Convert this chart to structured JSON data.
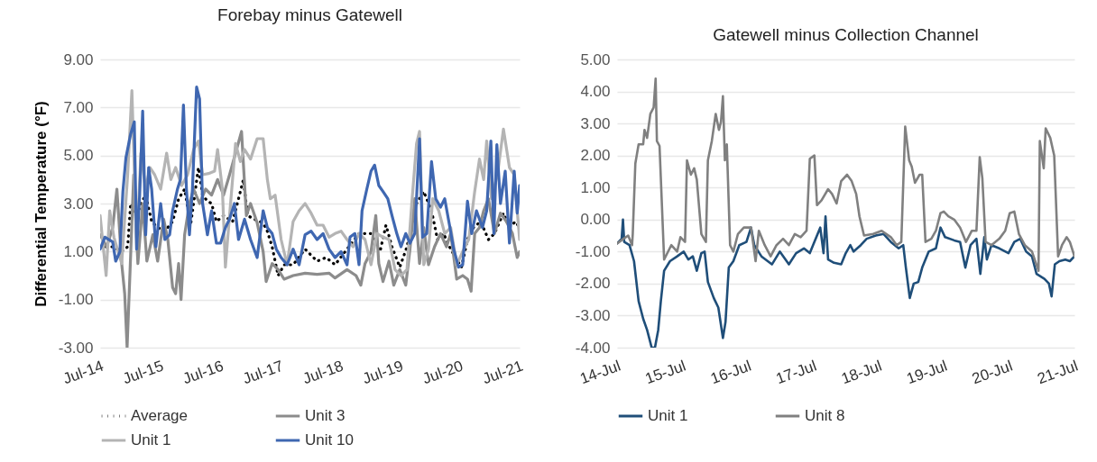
{
  "chart_data": [
    {
      "type": "line",
      "title": "Forebay minus Gatewell",
      "ylabel": "Differential Temperature (°F)",
      "xlim": [
        "--07-14",
        "--07-21"
      ],
      "xticks": [
        {
          "value": "--07-14",
          "label": "Jul-14"
        },
        {
          "value": "--07-15",
          "label": "Jul-15"
        },
        {
          "value": "--07-16",
          "label": "Jul-16"
        },
        {
          "value": "--07-17",
          "label": "Jul-17"
        },
        {
          "value": "--07-18",
          "label": "Jul-18"
        },
        {
          "value": "--07-19",
          "label": "Jul-19"
        },
        {
          "value": "--07-20",
          "label": "Jul-20"
        },
        {
          "value": "--07-21",
          "label": "Jul-21"
        }
      ],
      "ylim": [
        -3,
        9
      ],
      "yticks": [
        {
          "value": -3,
          "label": "-3.00"
        },
        {
          "value": -1,
          "label": "-1.00"
        },
        {
          "value": 1,
          "label": "1.00"
        },
        {
          "value": 3,
          "label": "3.00"
        },
        {
          "value": 5,
          "label": "5.00"
        },
        {
          "value": 7,
          "label": "7.00"
        },
        {
          "value": 9,
          "label": "9.00"
        }
      ],
      "grid": "y",
      "legend": "bottom",
      "series": [
        {
          "name": "Average",
          "color": "#000000",
          "line_style": "dotted",
          "x": [
            "--07-14T00:00",
            "--07-14T05:02",
            "--07-14T08:38",
            "--07-14T11:02",
            "--07-14T12:14",
            "--07-14T14:38",
            "--07-14T16:19",
            "--07-14T18:14",
            "--07-14T20:38",
            "--07-14T23:02",
            "--07-15T01:55",
            "--07-15T05:02",
            "--07-15T07:26",
            "--07-15T09:50",
            "--07-15T12:14",
            "--07-15T15:22",
            "--07-15T17:02",
            "--07-15T18:58",
            "--07-15T20:38",
            "--07-15T22:34",
            "--07-16T01:26",
            "--07-16T05:02",
            "--07-16T07:26",
            "--07-16T09:22",
            "--07-16T11:02",
            "--07-16T13:41",
            "--07-16T16:05",
            "--07-16T18:29",
            "--07-16T20:53",
            "--07-16T23:17",
            "--07-17T01:41",
            "--07-17T05:17",
            "--07-17T10:05",
            "--07-17T12:29",
            "--07-17T14:53",
            "--07-17T18:29",
            "--07-17T22:05",
            "--07-18T02:53",
            "--07-18T07:41",
            "--07-18T12:29",
            "--07-18T16:05",
            "--07-18T18:29",
            "--07-18T20:53",
            "--07-19T00:00",
            "--07-19T02:53",
            "--07-19T06:43",
            "--07-19T09:36",
            "--07-19T12:43",
            "--07-19T15:07",
            "--07-19T17:31",
            "--07-19T19:55",
            "--07-19T22:19",
            "--07-20T00:43",
            "--07-20T03:07",
            "--07-20T05:31",
            "--07-20T08:24",
            "--07-20T11:31",
            "--07-20T13:55",
            "--07-20T17:31",
            "--07-20T19:55",
            "--07-20T22:19",
            "--07-21T00:00"
          ],
          "values": [
            1.2,
            1.2,
            1.0,
            1.2,
            3.0,
            2.5,
            3.0,
            3.35,
            2.25,
            2.0,
            1.85,
            2.25,
            3.2,
            3.6,
            2.1,
            4.5,
            3.35,
            3.1,
            3.0,
            2.25,
            2.5,
            2.25,
            3.2,
            4.0,
            2.5,
            2.35,
            2.25,
            2.0,
            1.2,
            0.0,
            0.45,
            0.45,
            1.1,
            0.85,
            0.6,
            0.75,
            0.45,
            1.1,
            1.75,
            1.75,
            1.0,
            2.1,
            1.2,
            0.35,
            1.2,
            3.0,
            3.5,
            2.7,
            1.5,
            1.75,
            1.2,
            0.75,
            0.35,
            1.5,
            2.0,
            2.25,
            1.5,
            1.75,
            2.6,
            2.0,
            2.25,
            2.0
          ]
        },
        {
          "name": "Unit 3",
          "color": "#8c8c8c",
          "line_style": "solid",
          "x": [
            "--07-14T00:00",
            "--07-14T02:38",
            "--07-14T05:02",
            "--07-14T06:43",
            "--07-14T08:38",
            "--07-14T09:50",
            "--07-14T10:48",
            "--07-14T12:00",
            "--07-14T13:26",
            "--07-14T15:07",
            "--07-14T17:02",
            "--07-14T18:43",
            "--07-14T21:07",
            "--07-14T23:02",
            "--07-15T01:26",
            "--07-15T03:07",
            "--07-15T05:02",
            "--07-15T06:14",
            "--07-15T07:26",
            "--07-15T08:24",
            "--07-15T09:50",
            "--07-15T11:46",
            "--07-15T13:26",
            "--07-15T15:50",
            "--07-15T18:14",
            "--07-15T20:38",
            "--07-15T23:02",
            "--07-16T01:26",
            "--07-16T03:50",
            "--07-16T06:14",
            "--07-16T08:38",
            "--07-16T10:34",
            "--07-16T12:14",
            "--07-16T14:53",
            "--07-16T17:17",
            "--07-16T18:29",
            "--07-16T20:53",
            "--07-16T23:17",
            "--07-17T01:41",
            "--07-17T05:17",
            "--07-17T10:05",
            "--07-17T14:53",
            "--07-17T19:41",
            "--07-17T22:05",
            "--07-18T02:53",
            "--07-18T06:29",
            "--07-18T08:24",
            "--07-18T10:05",
            "--07-18T12:29",
            "--07-18T14:24",
            "--07-18T15:36",
            "--07-18T17:17",
            "--07-18T19:41",
            "--07-18T21:36",
            "--07-19T00:00",
            "--07-19T02:24",
            "--07-19T04:05",
            "--07-19T06:00",
            "--07-19T07:55",
            "--07-19T09:36",
            "--07-19T11:31",
            "--07-19T13:55",
            "--07-19T16:19",
            "--07-19T18:43",
            "--07-19T20:24",
            "--07-19T22:48",
            "--07-20T01:12",
            "--07-20T03:07",
            "--07-20T04:34",
            "--07-20T06:00",
            "--07-20T07:55",
            "--07-20T09:36",
            "--07-20T11:31",
            "--07-20T13:55",
            "--07-20T16:19",
            "--07-20T18:43",
            "--07-20T21:07",
            "--07-20T23:02",
            "--07-21T00:00"
          ],
          "values": [
            1.7,
            1.2,
            2.0,
            3.6,
            0.5,
            -0.75,
            -3.0,
            0.25,
            4.2,
            0.5,
            3.0,
            0.6,
            1.7,
            0.6,
            2.35,
            1.5,
            -0.5,
            -0.75,
            0.5,
            -1.0,
            1.7,
            3.0,
            3.6,
            3.0,
            3.6,
            3.35,
            4.0,
            3.35,
            4.2,
            5.1,
            6.0,
            2.5,
            3.0,
            2.2,
            1.0,
            -0.25,
            0.5,
            0.25,
            -0.15,
            0.0,
            0.1,
            0.05,
            0.1,
            -0.1,
            0.25,
            0.0,
            -0.4,
            0.5,
            1.0,
            2.5,
            0.5,
            -0.25,
            0.6,
            -0.4,
            0.25,
            -0.4,
            1.1,
            3.2,
            0.5,
            2.0,
            0.45,
            1.2,
            1.75,
            1.2,
            1.75,
            -0.15,
            0.0,
            -0.15,
            -0.65,
            1.75,
            2.0,
            2.7,
            3.2,
            1.75,
            2.6,
            2.25,
            1.75,
            0.75,
            1.0
          ]
        },
        {
          "name": "Unit 1",
          "color": "#b4b4b4",
          "line_style": "solid",
          "x": [
            "--07-14T00:00",
            "--07-14T02:24",
            "--07-14T03:50",
            "--07-14T05:31",
            "--07-14T08:38",
            "--07-14T11:02",
            "--07-14T12:43",
            "--07-14T14:38",
            "--07-14T16:19",
            "--07-14T18:14",
            "--07-14T19:55",
            "--07-14T21:50",
            "--07-15T00:14",
            "--07-15T02:38",
            "--07-15T04:19",
            "--07-15T06:14",
            "--07-15T08:38",
            "--07-15T11:02",
            "--07-15T13:26",
            "--07-15T15:22",
            "--07-15T17:02",
            "--07-15T19:26",
            "--07-15T21:50",
            "--07-15T23:02",
            "--07-16T00:58",
            "--07-16T02:10",
            "--07-16T03:50",
            "--07-16T06:14",
            "--07-16T08:10",
            "--07-16T09:50",
            "--07-16T12:14",
            "--07-16T14:53",
            "--07-16T17:17",
            "--07-16T18:58",
            "--07-16T20:10",
            "--07-16T22:05",
            "--07-17T00:29",
            "--07-17T02:53",
            "--07-17T05:17",
            "--07-17T07:41",
            "--07-17T10:05",
            "--07-17T12:29",
            "--07-17T14:53",
            "--07-17T17:17",
            "--07-17T19:41",
            "--07-17T22:05",
            "--07-18T00:29",
            "--07-18T02:53",
            "--07-18T05:17",
            "--07-18T07:41",
            "--07-18T10:05",
            "--07-18T12:29",
            "--07-18T14:53",
            "--07-18T17:17",
            "--07-18T19:41",
            "--07-18T22:05",
            "--07-19T00:29",
            "--07-19T02:53",
            "--07-19T04:48",
            "--07-19T06:43",
            "--07-19T07:55",
            "--07-19T09:36",
            "--07-19T11:31",
            "--07-19T13:12",
            "--07-19T15:36",
            "--07-19T18:00",
            "--07-19T20:24",
            "--07-19T22:48",
            "--07-20T01:12",
            "--07-20T03:36",
            "--07-20T06:00",
            "--07-20T07:55",
            "--07-20T09:36",
            "--07-20T10:48",
            "--07-20T12:43",
            "--07-20T15:07",
            "--07-20T17:31",
            "--07-20T19:55",
            "--07-20T21:50",
            "--07-21T00:00"
          ],
          "values": [
            2.5,
            0.0,
            2.7,
            1.6,
            0.5,
            4.2,
            7.7,
            1.1,
            5.1,
            3.6,
            4.5,
            4.2,
            3.6,
            5.1,
            4.0,
            4.5,
            3.75,
            4.2,
            5.25,
            5.6,
            4.2,
            4.25,
            4.35,
            5.25,
            3.6,
            0.35,
            2.5,
            5.5,
            4.75,
            5.25,
            4.85,
            5.7,
            5.7,
            4.0,
            3.2,
            3.35,
            1.5,
            0.45,
            2.25,
            2.7,
            3.0,
            2.6,
            2.1,
            2.1,
            1.6,
            1.75,
            1.85,
            1.5,
            1.2,
            1.75,
            1.5,
            0.45,
            1.75,
            1.6,
            1.5,
            0.25,
            0.0,
            0.25,
            3.0,
            5.5,
            6.0,
            0.45,
            1.1,
            3.2,
            2.7,
            1.75,
            2.0,
            0.45,
            1.0,
            1.5,
            3.5,
            4.85,
            4.0,
            5.6,
            3.2,
            4.2,
            6.1,
            4.5,
            4.2,
            1.5
          ]
        },
        {
          "name": "Unit 10",
          "color": "#3f67b1",
          "line_style": "solid",
          "x": [
            "--07-14T00:00",
            "--07-14T01:55",
            "--07-14T05:02",
            "--07-14T06:14",
            "--07-14T07:55",
            "--07-14T09:07",
            "--07-14T10:19",
            "--07-14T12:14",
            "--07-14T13:41",
            "--07-14T14:38",
            "--07-14T15:50",
            "--07-14T17:02",
            "--07-14T18:14",
            "--07-14T19:26",
            "--07-14T20:38",
            "--07-14T22:19",
            "--07-15T00:14",
            "--07-15T01:55",
            "--07-15T03:50",
            "--07-15T05:02",
            "--07-15T06:58",
            "--07-15T08:10",
            "--07-15T09:22",
            "--07-15T10:34",
            "--07-15T11:46",
            "--07-15T12:58",
            "--07-15T14:10",
            "--07-15T14:38",
            "--07-15T15:50",
            "--07-15T17:02",
            "--07-15T18:58",
            "--07-15T20:38",
            "--07-15T22:34",
            "--07-16T00:14",
            "--07-16T02:10",
            "--07-16T03:50",
            "--07-16T05:46",
            "--07-16T07:26",
            "--07-16T09:50",
            "--07-16T12:14",
            "--07-16T14:53",
            "--07-16T17:17",
            "--07-16T18:58",
            "--07-16T20:53",
            "--07-16T22:34",
            "--07-17T00:29",
            "--07-17T02:53",
            "--07-17T05:17",
            "--07-17T07:41",
            "--07-17T10:05",
            "--07-17T12:29",
            "--07-17T14:53",
            "--07-17T17:17",
            "--07-17T19:41",
            "--07-17T22:05",
            "--07-18T00:29",
            "--07-18T02:53",
            "--07-18T04:05",
            "--07-18T06:00",
            "--07-18T07:41",
            "--07-18T08:53",
            "--07-18T10:48",
            "--07-18T12:29",
            "--07-18T13:55",
            "--07-18T15:36",
            "--07-18T17:17",
            "--07-18T19:12",
            "--07-18T20:53",
            "--07-18T22:48",
            "--07-19T00:29",
            "--07-19T02:24",
            "--07-19T04:05",
            "--07-19T06:00",
            "--07-19T07:55",
            "--07-19T09:07",
            "--07-19T10:48",
            "--07-19T12:43",
            "--07-19T14:24",
            "--07-19T16:19",
            "--07-19T18:00",
            "--07-19T19:55",
            "--07-19T21:36",
            "--07-19T23:31",
            "--07-20T01:12",
            "--07-20T03:07",
            "--07-20T04:48",
            "--07-20T06:43",
            "--07-20T09:07",
            "--07-20T10:48",
            "--07-20T12:29",
            "--07-20T13:41",
            "--07-20T14:53",
            "--07-20T16:19",
            "--07-20T18:14",
            "--07-20T19:55",
            "--07-20T21:50",
            "--07-20T23:02",
            "--07-21T00:00"
          ],
          "values": [
            1.1,
            1.6,
            1.4,
            0.6,
            1.0,
            3.5,
            4.9,
            5.9,
            6.4,
            1.1,
            3.35,
            6.85,
            1.7,
            4.5,
            3.6,
            1.2,
            3.0,
            1.5,
            1.7,
            2.7,
            3.6,
            4.0,
            7.1,
            3.6,
            1.7,
            3.6,
            6.7,
            7.85,
            7.35,
            3.0,
            1.7,
            2.7,
            1.35,
            1.35,
            2.0,
            2.35,
            3.0,
            1.5,
            2.35,
            1.5,
            0.75,
            2.7,
            2.0,
            1.75,
            1.1,
            0.75,
            0.45,
            1.1,
            0.45,
            1.7,
            1.85,
            1.5,
            1.75,
            1.1,
            0.75,
            1.0,
            0.45,
            1.6,
            1.75,
            0.45,
            2.7,
            3.6,
            4.35,
            4.6,
            3.75,
            3.5,
            3.2,
            2.5,
            1.75,
            1.2,
            1.75,
            1.35,
            1.75,
            5.7,
            1.6,
            1.75,
            4.75,
            3.2,
            2.85,
            3.2,
            2.1,
            1.1,
            0.35,
            0.45,
            3.1,
            1.75,
            2.7,
            2.0,
            2.7,
            5.6,
            1.75,
            5.45,
            3.0,
            4.35,
            1.35,
            4.35,
            2.6,
            3.75
          ]
        }
      ]
    },
    {
      "type": "line",
      "title": "Gatewell minus Collection Channel",
      "xlim": [
        "--07-14",
        "--07-21"
      ],
      "xticks": [
        {
          "value": "--07-14",
          "label": "14-Jul"
        },
        {
          "value": "--07-15",
          "label": "15-Jul"
        },
        {
          "value": "--07-16",
          "label": "16-Jul"
        },
        {
          "value": "--07-17",
          "label": "17-Jul"
        },
        {
          "value": "--07-18",
          "label": "18-Jul"
        },
        {
          "value": "--07-19",
          "label": "19-Jul"
        },
        {
          "value": "--07-20",
          "label": "20-Jul"
        },
        {
          "value": "--07-21",
          "label": "21-Jul"
        }
      ],
      "ylim": [
        -4,
        5
      ],
      "yticks": [
        {
          "value": -4,
          "label": "-4.00"
        },
        {
          "value": -3,
          "label": "-3.00"
        },
        {
          "value": -2,
          "label": "-2.00"
        },
        {
          "value": -1,
          "label": "-1.00"
        },
        {
          "value": 0,
          "label": "0.00"
        },
        {
          "value": 1,
          "label": "1.00"
        },
        {
          "value": 2,
          "label": "2.00"
        },
        {
          "value": 3,
          "label": "3.00"
        },
        {
          "value": 4,
          "label": "4.00"
        },
        {
          "value": 5,
          "label": "5.00"
        }
      ],
      "grid": "y",
      "legend": "bottom",
      "series": [
        {
          "name": "Unit 1",
          "color": "#1f4e79",
          "line_style": "solid",
          "x": [
            "--07-14T00:00",
            "--07-14T01:41",
            "--07-14T02:10",
            "--07-14T02:38",
            "--07-14T04:34",
            "--07-14T06:14",
            "--07-14T07:55",
            "--07-14T09:36",
            "--07-14T11:02",
            "--07-14T12:43",
            "--07-14T13:55",
            "--07-14T15:07",
            "--07-14T16:05",
            "--07-14T17:17",
            "--07-14T19:26",
            "--07-14T22:05",
            "--07-15T00:29",
            "--07-15T02:10",
            "--07-15T03:50",
            "--07-15T05:17",
            "--07-15T06:58",
            "--07-15T08:10",
            "--07-15T09:22",
            "--07-15T11:31",
            "--07-15T13:12",
            "--07-15T14:53",
            "--07-15T15:50",
            "--07-15T17:02",
            "--07-15T18:43",
            "--07-15T20:53",
            "--07-15T23:31",
            "--07-16T01:12",
            "--07-16T02:24",
            "--07-16T05:02",
            "--07-16T08:53",
            "--07-16T11:46",
            "--07-16T15:07",
            "--07-16T17:46",
            "--07-16T20:38",
            "--07-16T22:48",
            "--07-17T00:58",
            "--07-17T02:38",
            "--07-17T03:50",
            "--07-17T04:34",
            "--07-17T05:31",
            "--07-17T07:41",
            "--07-17T10:19",
            "--07-17T12:00",
            "--07-17T13:41",
            "--07-17T14:53",
            "--07-17T17:31",
            "--07-17T19:41",
            "--07-17T23:02",
            "--07-18T01:55",
            "--07-18T04:34",
            "--07-18T07:26",
            "--07-18T09:07",
            "--07-18T10:05",
            "--07-18T11:31",
            "--07-18T12:58",
            "--07-18T14:38",
            "--07-18T16:05",
            "--07-18T18:29",
            "--07-18T21:07",
            "--07-18T22:48",
            "--07-19T00:29",
            "--07-19T03:50",
            "--07-19T06:00",
            "--07-19T07:55",
            "--07-19T09:50",
            "--07-19T12:00",
            "--07-19T13:26",
            "--07-19T14:53",
            "--07-19T15:50",
            "--07-19T17:31",
            "--07-19T20:24",
            "--07-19T23:46",
            "--07-20T01:55",
            "--07-20T04:05",
            "--07-20T06:14",
            "--07-20T08:24",
            "--07-20T10:05",
            "--07-20T12:58",
            "--07-20T14:38",
            "--07-20T15:36",
            "--07-20T16:48",
            "--07-20T18:29",
            "--07-20T20:38",
            "--07-20T22:19",
            "--07-21T00:00"
          ],
          "values": [
            -0.75,
            -0.6,
            0.0,
            -0.7,
            -0.8,
            -1.3,
            -2.55,
            -3.1,
            -3.45,
            -4.0,
            -4.0,
            -3.45,
            -2.55,
            -1.6,
            -1.3,
            -1.15,
            -1.0,
            -1.25,
            -1.15,
            -1.6,
            -1.05,
            -1.0,
            -1.95,
            -2.45,
            -2.75,
            -3.7,
            -3.2,
            -1.5,
            -1.3,
            -0.8,
            -0.7,
            -0.25,
            -0.8,
            -1.15,
            -1.4,
            -1.0,
            -1.4,
            -1.05,
            -0.9,
            -1.05,
            -0.6,
            -0.25,
            -1.05,
            0.1,
            -1.25,
            -1.35,
            -1.4,
            -1.05,
            -0.8,
            -1.0,
            -0.8,
            -0.6,
            -0.5,
            -0.45,
            -0.7,
            -0.9,
            -0.8,
            -1.5,
            -2.45,
            -2.0,
            -1.95,
            -1.5,
            -1.0,
            -0.9,
            -0.25,
            -0.55,
            -0.65,
            -0.7,
            -1.5,
            -0.8,
            -0.6,
            -1.7,
            -0.55,
            -1.25,
            -0.8,
            -0.9,
            -1.05,
            -0.7,
            -0.6,
            -1.0,
            -1.15,
            -1.7,
            -1.85,
            -2.0,
            -2.4,
            -1.4,
            -1.3,
            -1.25,
            -1.3,
            -1.15
          ]
        },
        {
          "name": "Unit 8",
          "color": "#808080",
          "line_style": "solid",
          "x": [
            "--07-14T00:00",
            "--07-14T02:24",
            "--07-14T04:05",
            "--07-14T05:31",
            "--07-14T05:46",
            "--07-14T06:43",
            "--07-14T07:55",
            "--07-14T09:36",
            "--07-14T10:05",
            "--07-14T11:02",
            "--07-14T12:14",
            "--07-14T13:26",
            "--07-14T14:10",
            "--07-14T14:38",
            "--07-14T15:36",
            "--07-14T17:17",
            "--07-14T19:55",
            "--07-14T22:05",
            "--07-14T23:17",
            "--07-15T00:58",
            "--07-15T01:41",
            "--07-15T03:07",
            "--07-15T04:19",
            "--07-15T05:17",
            "--07-15T06:58",
            "--07-15T08:38",
            "--07-15T09:22",
            "--07-15T10:48",
            "--07-15T12:14",
            "--07-15T13:26",
            "--07-15T14:10",
            "--07-15T14:53",
            "--07-15T15:36",
            "--07-15T16:19",
            "--07-15T17:31",
            "--07-15T18:43",
            "--07-15T20:24",
            "--07-15T22:34",
            "--07-16T01:12",
            "--07-16T02:53",
            "--07-16T04:05",
            "--07-16T06:14",
            "--07-16T08:24",
            "--07-16T10:34",
            "--07-16T12:58",
            "--07-16T15:07",
            "--07-16T17:17",
            "--07-16T19:26",
            "--07-16T21:36",
            "--07-16T22:48",
            "--07-17T00:29",
            "--07-17T01:26",
            "--07-17T03:07",
            "--07-17T05:31",
            "--07-17T06:58",
            "--07-17T08:38",
            "--07-17T10:19",
            "--07-17T12:29",
            "--07-17T14:10",
            "--07-17T15:50",
            "--07-17T17:02",
            "--07-17T18:43",
            "--07-17T22:05",
            "--07-18T01:12",
            "--07-18T04:34",
            "--07-18T06:43",
            "--07-18T08:24",
            "--07-18T09:50",
            "--07-18T11:17",
            "--07-18T12:14",
            "--07-18T13:26",
            "--07-18T15:07",
            "--07-18T16:05",
            "--07-18T17:17",
            "--07-18T19:26",
            "--07-18T21:07",
            "--07-18T22:48",
            "--07-19T00:00",
            "--07-19T01:41",
            "--07-19T03:50",
            "--07-19T06:00",
            "--07-19T08:10",
            "--07-19T10:19",
            "--07-19T12:00",
            "--07-19T13:12",
            "--07-19T14:10",
            "--07-19T15:22",
            "--07-19T17:31",
            "--07-19T20:24",
            "--07-19T22:34",
            "--07-20T00:14",
            "--07-20T01:55",
            "--07-20T03:36",
            "--07-20T05:46",
            "--07-20T08:24",
            "--07-20T10:48",
            "--07-20T11:17",
            "--07-20T12:43",
            "--07-20T13:26",
            "--07-20T15:07",
            "--07-20T16:34",
            "--07-20T18:00",
            "--07-20T19:26",
            "--07-20T21:07",
            "--07-20T22:19",
            "--07-21T00:00"
          ],
          "values": [
            -0.75,
            -0.6,
            -0.5,
            -0.8,
            -0.45,
            1.75,
            2.35,
            2.35,
            2.8,
            2.55,
            3.3,
            3.5,
            4.4,
            2.45,
            2.3,
            -1.25,
            -0.8,
            -1.0,
            -0.55,
            -0.7,
            1.85,
            1.4,
            1.6,
            1.25,
            -0.45,
            -0.7,
            1.85,
            2.45,
            3.3,
            2.8,
            3.05,
            3.85,
            1.85,
            2.35,
            -0.8,
            -1.0,
            -0.45,
            -0.25,
            -0.25,
            -1.3,
            -0.35,
            -0.8,
            -1.15,
            -0.8,
            -0.6,
            -0.8,
            -0.45,
            -0.55,
            -0.35,
            1.9,
            2.0,
            0.45,
            0.6,
            0.95,
            0.8,
            0.5,
            1.2,
            1.4,
            1.2,
            0.8,
            0.1,
            -0.5,
            -0.45,
            -0.35,
            -0.55,
            -0.8,
            -0.7,
            2.9,
            1.85,
            1.65,
            1.15,
            1.4,
            1.4,
            -0.7,
            -0.6,
            -0.35,
            0.2,
            0.25,
            0.1,
            0.0,
            -0.25,
            -0.7,
            -0.35,
            -0.35,
            1.95,
            1.3,
            -0.7,
            -0.8,
            -0.6,
            -0.35,
            0.2,
            0.25,
            -0.45,
            -0.8,
            -1.0,
            -1.6,
            2.45,
            1.6,
            2.85,
            2.55,
            2.0,
            -1.15,
            -0.8,
            -0.55,
            -0.7,
            -1.15
          ]
        }
      ]
    }
  ]
}
